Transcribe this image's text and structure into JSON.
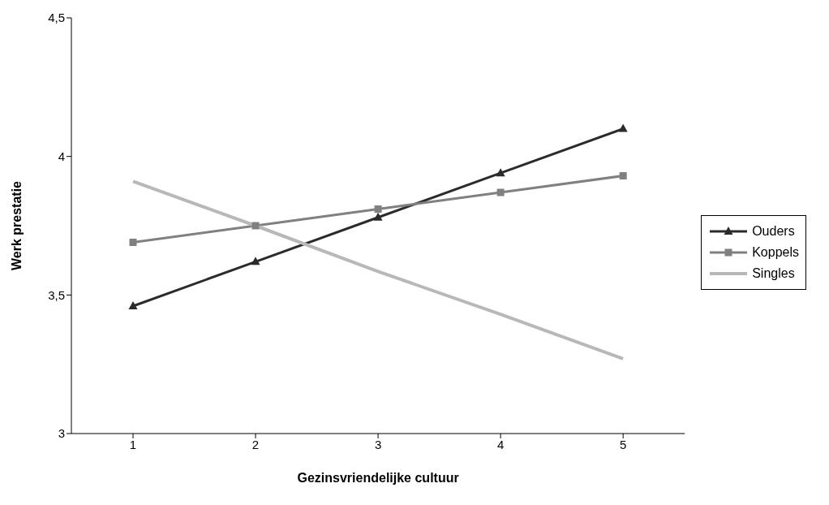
{
  "chart_data": {
    "type": "line",
    "xlabel": "Gezinsvriendelijke cultuur",
    "ylabel": "Werk prestatie",
    "categories": [
      "1",
      "2",
      "3",
      "4",
      "5"
    ],
    "series": [
      {
        "name": "Ouders",
        "color": "#2b2b2b",
        "marker": "triangle",
        "values": [
          3.46,
          3.62,
          3.78,
          3.94,
          4.1
        ]
      },
      {
        "name": "Koppels",
        "color": "#808080",
        "marker": "square",
        "values": [
          3.69,
          3.75,
          3.81,
          3.87,
          3.93
        ]
      },
      {
        "name": "Singles",
        "color": "#b8b8b8",
        "marker": "none",
        "values": [
          3.91,
          3.75,
          3.585,
          3.43,
          3.27
        ]
      }
    ],
    "ylim": [
      3,
      4.5
    ],
    "yticks": [
      3,
      {
        "value": 3.5,
        "label": "3,5"
      },
      4,
      {
        "value": 4.5,
        "label": "4,5"
      }
    ],
    "grid": false,
    "legend": "right"
  }
}
